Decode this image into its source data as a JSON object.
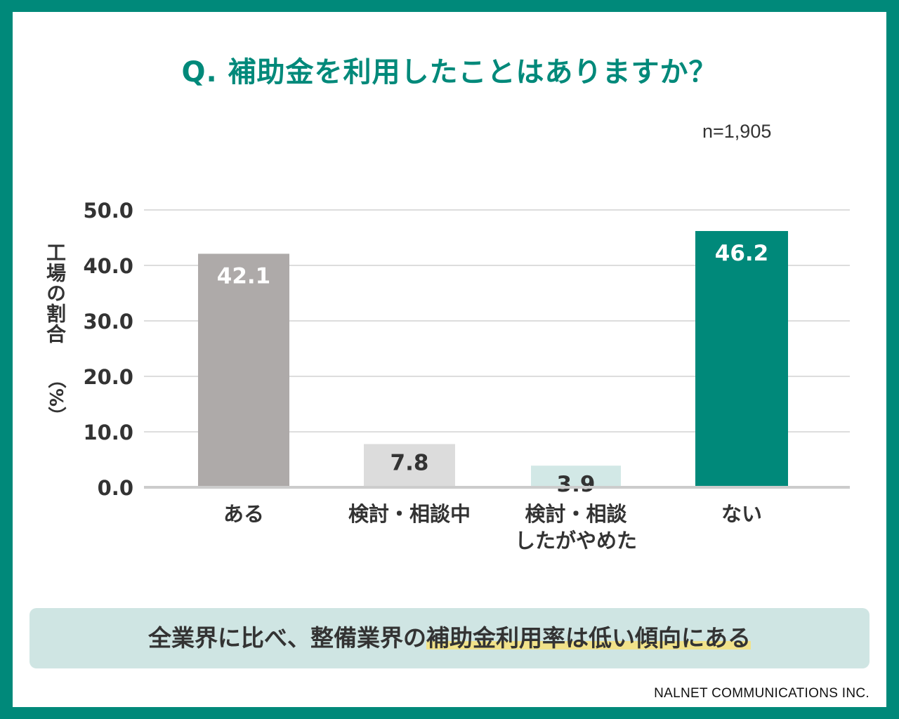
{
  "title": "Q. 補助金を利用したことはありますか？",
  "sample_size": "n=1,905",
  "summary": {
    "text_plain": "全業界に比べ、整備業界の",
    "text_highlight": "補助金利用率は低い傾向にある"
  },
  "footer": "NALNET COMMUNICATIONS INC.",
  "colors": {
    "frame": "#00897a",
    "title": "#00897a",
    "bar_aru": "#aeaaa9",
    "bar_kento": "#dcdcdc",
    "bar_yameta": "#d2e8e6",
    "bar_nai": "#00897a",
    "grid": "#dddddd",
    "highlight": "#f1e28a",
    "summary_bg": "#cfe5e3"
  },
  "chart_data": {
    "type": "bar",
    "title": "Q. 補助金を利用したことはありますか？",
    "xlabel": "",
    "ylabel": "工場の割合",
    "ylabel_unit": "（%）",
    "ylim": [
      0,
      50
    ],
    "yticks": [
      "0.0",
      "10.0",
      "20.0",
      "30.0",
      "40.0",
      "50.0"
    ],
    "grid": true,
    "categories": [
      [
        "ある"
      ],
      [
        "検討・相談中"
      ],
      [
        "検討・相談",
        "したがやめた"
      ],
      [
        "ない"
      ]
    ],
    "values": [
      42.1,
      7.8,
      3.9,
      46.2
    ],
    "value_labels": [
      "42.1",
      "7.8",
      "3.9",
      "46.2"
    ]
  }
}
